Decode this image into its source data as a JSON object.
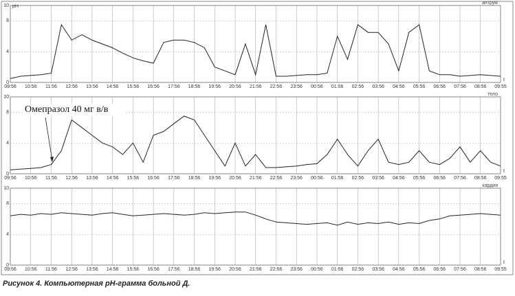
{
  "caption": "Рисунок 4. Компьютерная pH-грамма больной Д.",
  "chart_data": [
    {
      "type": "line",
      "title": "антрум",
      "y_label": "pH",
      "x_label": "t",
      "x": [
        "09:56",
        "10:26",
        "10:56",
        "11:26",
        "11:56",
        "12:26",
        "12:56",
        "13:26",
        "13:56",
        "14:26",
        "14:56",
        "15:26",
        "15:56",
        "16:26",
        "16:56",
        "17:26",
        "17:56",
        "18:26",
        "18:56",
        "19:26",
        "19:56",
        "20:26",
        "20:56",
        "21:26",
        "21:56",
        "22:26",
        "22:56",
        "23:26",
        "23:56",
        "00:26",
        "00:56",
        "01:26",
        "01:56",
        "02:26",
        "02:56",
        "03:26",
        "03:56",
        "04:26",
        "04:56",
        "05:26",
        "05:56",
        "06:26",
        "06:56",
        "07:26",
        "07:56",
        "08:26",
        "08:56",
        "09:26",
        "09:55"
      ],
      "series": [
        {
          "name": "антрум",
          "color": "#222222",
          "values": [
            0.5,
            0.8,
            0.9,
            1.0,
            1.2,
            7.5,
            5.5,
            6.2,
            5.5,
            5.0,
            4.5,
            3.8,
            3.2,
            2.8,
            2.5,
            5.2,
            5.5,
            5.5,
            5.2,
            4.5,
            2.0,
            1.5,
            1.0,
            5.0,
            1.0,
            7.5,
            0.8,
            0.8,
            0.9,
            1.0,
            1.0,
            1.2,
            6.0,
            3.0,
            7.5,
            6.5,
            6.5,
            5.0,
            1.5,
            6.5,
            7.5,
            1.5,
            1.0,
            1.0,
            0.8,
            0.9,
            1.0,
            0.9,
            0.8
          ]
        }
      ],
      "xlim": [
        "09:56",
        "09:55"
      ],
      "xticks": [
        "09:56",
        "10:56",
        "11:56",
        "12:56",
        "13:56",
        "14:56",
        "15:56",
        "16:56",
        "17:56",
        "18:56",
        "19:56",
        "20:56",
        "21:56",
        "22:56",
        "23:56",
        "00:56",
        "01:56",
        "02:56",
        "03:56",
        "04:56",
        "05:56",
        "06:56",
        "07:56",
        "08:56",
        "09:55"
      ],
      "ylim": [
        0,
        10
      ],
      "yticks": [
        0,
        4,
        8,
        10
      ],
      "grid": true
    },
    {
      "type": "line",
      "title": "тело",
      "x_label": "t",
      "annotation": "Омепразол 40 мг в/в",
      "x": [
        "09:56",
        "10:26",
        "10:56",
        "11:26",
        "11:56",
        "12:26",
        "12:56",
        "13:26",
        "13:56",
        "14:26",
        "14:56",
        "15:26",
        "15:56",
        "16:26",
        "16:56",
        "17:26",
        "17:56",
        "18:26",
        "18:56",
        "19:26",
        "19:56",
        "20:26",
        "20:56",
        "21:26",
        "21:56",
        "22:26",
        "22:56",
        "23:26",
        "23:56",
        "00:26",
        "00:56",
        "01:26",
        "01:56",
        "02:26",
        "02:56",
        "03:26",
        "03:56",
        "04:26",
        "04:56",
        "05:26",
        "05:56",
        "06:26",
        "06:56",
        "07:26",
        "07:56",
        "08:26",
        "08:56",
        "09:26",
        "09:55"
      ],
      "series": [
        {
          "name": "тело",
          "color": "#222222",
          "values": [
            0.5,
            0.6,
            0.7,
            0.8,
            1.2,
            3.0,
            7.0,
            6.0,
            5.0,
            4.0,
            3.5,
            2.5,
            4.0,
            1.5,
            5.0,
            5.5,
            6.5,
            7.5,
            7.0,
            5.0,
            3.0,
            1.0,
            4.0,
            1.0,
            2.5,
            0.8,
            0.8,
            0.9,
            1.0,
            1.2,
            1.3,
            2.5,
            4.5,
            2.5,
            1.0,
            3.0,
            4.5,
            1.5,
            1.2,
            1.5,
            3.0,
            1.5,
            1.2,
            2.0,
            3.5,
            1.5,
            3.0,
            1.5,
            1.0
          ]
        }
      ],
      "xlim": [
        "09:56",
        "09:55"
      ],
      "xticks": [
        "09:56",
        "10:56",
        "11:56",
        "12:56",
        "13:56",
        "14:56",
        "15:56",
        "16:56",
        "17:56",
        "18:56",
        "19:56",
        "20:56",
        "21:56",
        "22:56",
        "23:56",
        "00:56",
        "01:56",
        "02:56",
        "03:56",
        "04:56",
        "05:56",
        "06:56",
        "07:56",
        "08:56",
        "09:55"
      ],
      "ylim": [
        0,
        10
      ],
      "yticks": [
        0,
        4,
        8,
        10
      ],
      "grid": true
    },
    {
      "type": "line",
      "title": "кардия",
      "x_label": "t",
      "x": [
        "09:56",
        "10:26",
        "10:56",
        "11:26",
        "11:56",
        "12:26",
        "12:56",
        "13:26",
        "13:56",
        "14:26",
        "14:56",
        "15:26",
        "15:56",
        "16:26",
        "16:56",
        "17:26",
        "17:56",
        "18:26",
        "18:56",
        "19:26",
        "19:56",
        "20:26",
        "20:56",
        "21:26",
        "21:56",
        "22:26",
        "22:56",
        "23:26",
        "23:56",
        "00:26",
        "00:56",
        "01:26",
        "01:56",
        "02:26",
        "02:56",
        "03:26",
        "03:56",
        "04:26",
        "04:56",
        "05:26",
        "05:56",
        "06:26",
        "06:56",
        "07:26",
        "07:56",
        "08:26",
        "08:56",
        "09:26",
        "09:55"
      ],
      "series": [
        {
          "name": "кардия",
          "color": "#222222",
          "values": [
            6.4,
            6.6,
            6.5,
            6.7,
            6.6,
            6.8,
            6.7,
            6.6,
            6.5,
            6.7,
            6.8,
            6.6,
            6.4,
            6.5,
            6.6,
            6.7,
            6.6,
            6.5,
            6.6,
            6.8,
            6.7,
            6.8,
            6.9,
            6.9,
            6.5,
            6.0,
            5.6,
            5.5,
            5.4,
            5.3,
            5.4,
            5.5,
            5.2,
            5.6,
            5.3,
            5.5,
            5.4,
            5.6,
            5.3,
            5.5,
            5.4,
            5.8,
            6.0,
            6.4,
            6.5,
            6.6,
            6.7,
            6.6,
            6.5
          ]
        }
      ],
      "xlim": [
        "09:56",
        "09:55"
      ],
      "xticks": [
        "09:56",
        "10:56",
        "11:56",
        "12:56",
        "13:56",
        "14:56",
        "15:56",
        "16:56",
        "17:56",
        "18:56",
        "19:56",
        "20:56",
        "21:56",
        "22:56",
        "23:56",
        "00:56",
        "01:56",
        "02:56",
        "03:56",
        "04:56",
        "05:56",
        "06:56",
        "07:56",
        "08:56",
        "09:55"
      ],
      "ylim": [
        0,
        10
      ],
      "yticks": [
        0,
        4,
        8,
        10
      ],
      "grid": true
    }
  ]
}
